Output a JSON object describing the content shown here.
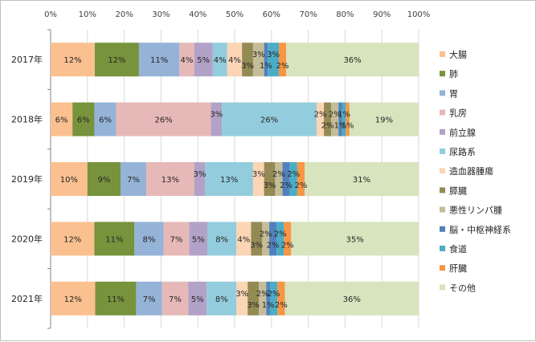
{
  "chart_data": {
    "type": "bar",
    "orientation": "horizontal",
    "stacked": true,
    "percent": true,
    "categories": [
      "2017年",
      "2018年",
      "2019年",
      "2020年",
      "2021年"
    ],
    "x_ticks": [
      "0%",
      "10%",
      "20%",
      "30%",
      "40%",
      "50%",
      "60%",
      "70%",
      "80%",
      "90%",
      "100%"
    ],
    "xlim": [
      0,
      100
    ],
    "grid": "vertical",
    "legend_position": "right",
    "series": [
      {
        "name": "大腸",
        "color": "#FAC090",
        "values": [
          12,
          6,
          10,
          12,
          12
        ],
        "labels": [
          "12%",
          "6%",
          "10%",
          "12%",
          "12%"
        ]
      },
      {
        "name": "肺",
        "color": "#77933C",
        "values": [
          12,
          6,
          9,
          11,
          11
        ],
        "labels": [
          "12%",
          "6%",
          "9%",
          "11%",
          "11%"
        ]
      },
      {
        "name": "胃",
        "color": "#95B3D7",
        "values": [
          11,
          6,
          7,
          8,
          7
        ],
        "labels": [
          "11%",
          "6%",
          "7%",
          "8%",
          "7%"
        ]
      },
      {
        "name": "乳房",
        "color": "#E6B9B8",
        "values": [
          4,
          26,
          13,
          7,
          7
        ],
        "labels": [
          "4%",
          "26%",
          "13%",
          "7%",
          "7%"
        ]
      },
      {
        "name": "前立腺",
        "color": "#B3A2C7",
        "values": [
          5,
          3,
          3,
          5,
          5
        ],
        "labels": [
          "5%",
          "3%",
          "3%",
          "5%",
          "5%"
        ]
      },
      {
        "name": "尿路系",
        "color": "#93CDDD",
        "values": [
          4,
          26,
          13,
          8,
          8
        ],
        "labels": [
          "4%",
          "26%",
          "13%",
          "8%",
          "8%"
        ]
      },
      {
        "name": "造血器腫瘍",
        "color": "#FCD5B5",
        "values": [
          4,
          2,
          3,
          4,
          3
        ],
        "labels": [
          "4%",
          "2%",
          "3%",
          "4%",
          "3%"
        ]
      },
      {
        "name": "膵臓",
        "color": "#948A54",
        "values": [
          3,
          2,
          3,
          3,
          3
        ],
        "labels": [
          "3%",
          "2%",
          "3%",
          "3%",
          "3%"
        ]
      },
      {
        "name": "悪性リンパ腫",
        "color": "#C4BD97",
        "values": [
          3,
          2,
          2,
          2,
          2
        ],
        "labels": [
          "3%",
          "2%",
          "2%",
          "2%",
          "2%"
        ]
      },
      {
        "name": "脳・中枢神経系",
        "color": "#4F81BD",
        "values": [
          1,
          1,
          2,
          2,
          1
        ],
        "labels": [
          "1%",
          "1%",
          "2%",
          "2%",
          "1%"
        ]
      },
      {
        "name": "食道",
        "color": "#4BACC6",
        "values": [
          3,
          1,
          2,
          2,
          2
        ],
        "labels": [
          "3%",
          "1%",
          "2%",
          "2%",
          "2%"
        ]
      },
      {
        "name": "肝臓",
        "color": "#F79646",
        "values": [
          2,
          1,
          2,
          2,
          2
        ],
        "labels": [
          "2%",
          "1%",
          "2%",
          "2%",
          "2%"
        ]
      },
      {
        "name": "その他",
        "color": "#D7E4BD",
        "values": [
          36,
          19,
          31,
          35,
          36
        ],
        "labels": [
          "36%",
          "19%",
          "31%",
          "35%",
          "36%"
        ]
      }
    ]
  }
}
